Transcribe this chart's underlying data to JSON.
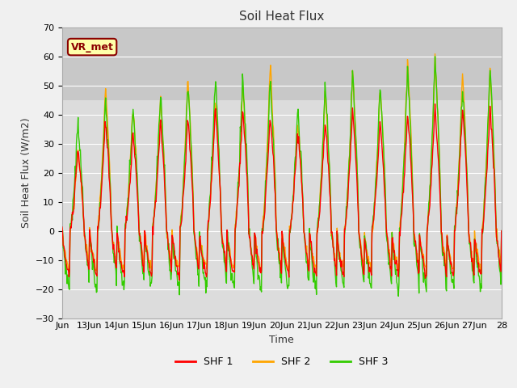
{
  "title": "Soil Heat Flux",
  "xlabel": "Time",
  "ylabel": "Soil Heat Flux (W/m2)",
  "ylim": [
    -30,
    70
  ],
  "yticks": [
    -30,
    -20,
    -10,
    0,
    10,
    20,
    30,
    40,
    50,
    60,
    70
  ],
  "legend_labels": [
    "SHF 1",
    "SHF 2",
    "SHF 3"
  ],
  "legend_colors": [
    "#ff0000",
    "#ffa500",
    "#33cc00"
  ],
  "annotation_text": "VR_met",
  "annotation_fg": "#8b0000",
  "annotation_bg": "#ffffaa",
  "plot_bg_lower": "#dcdcdc",
  "plot_bg_upper": "#c8c8c8",
  "grid_color": "#ffffff",
  "fig_bg": "#f0f0f0",
  "line_width": 1.0,
  "num_days": 16,
  "shaded_above": 45
}
